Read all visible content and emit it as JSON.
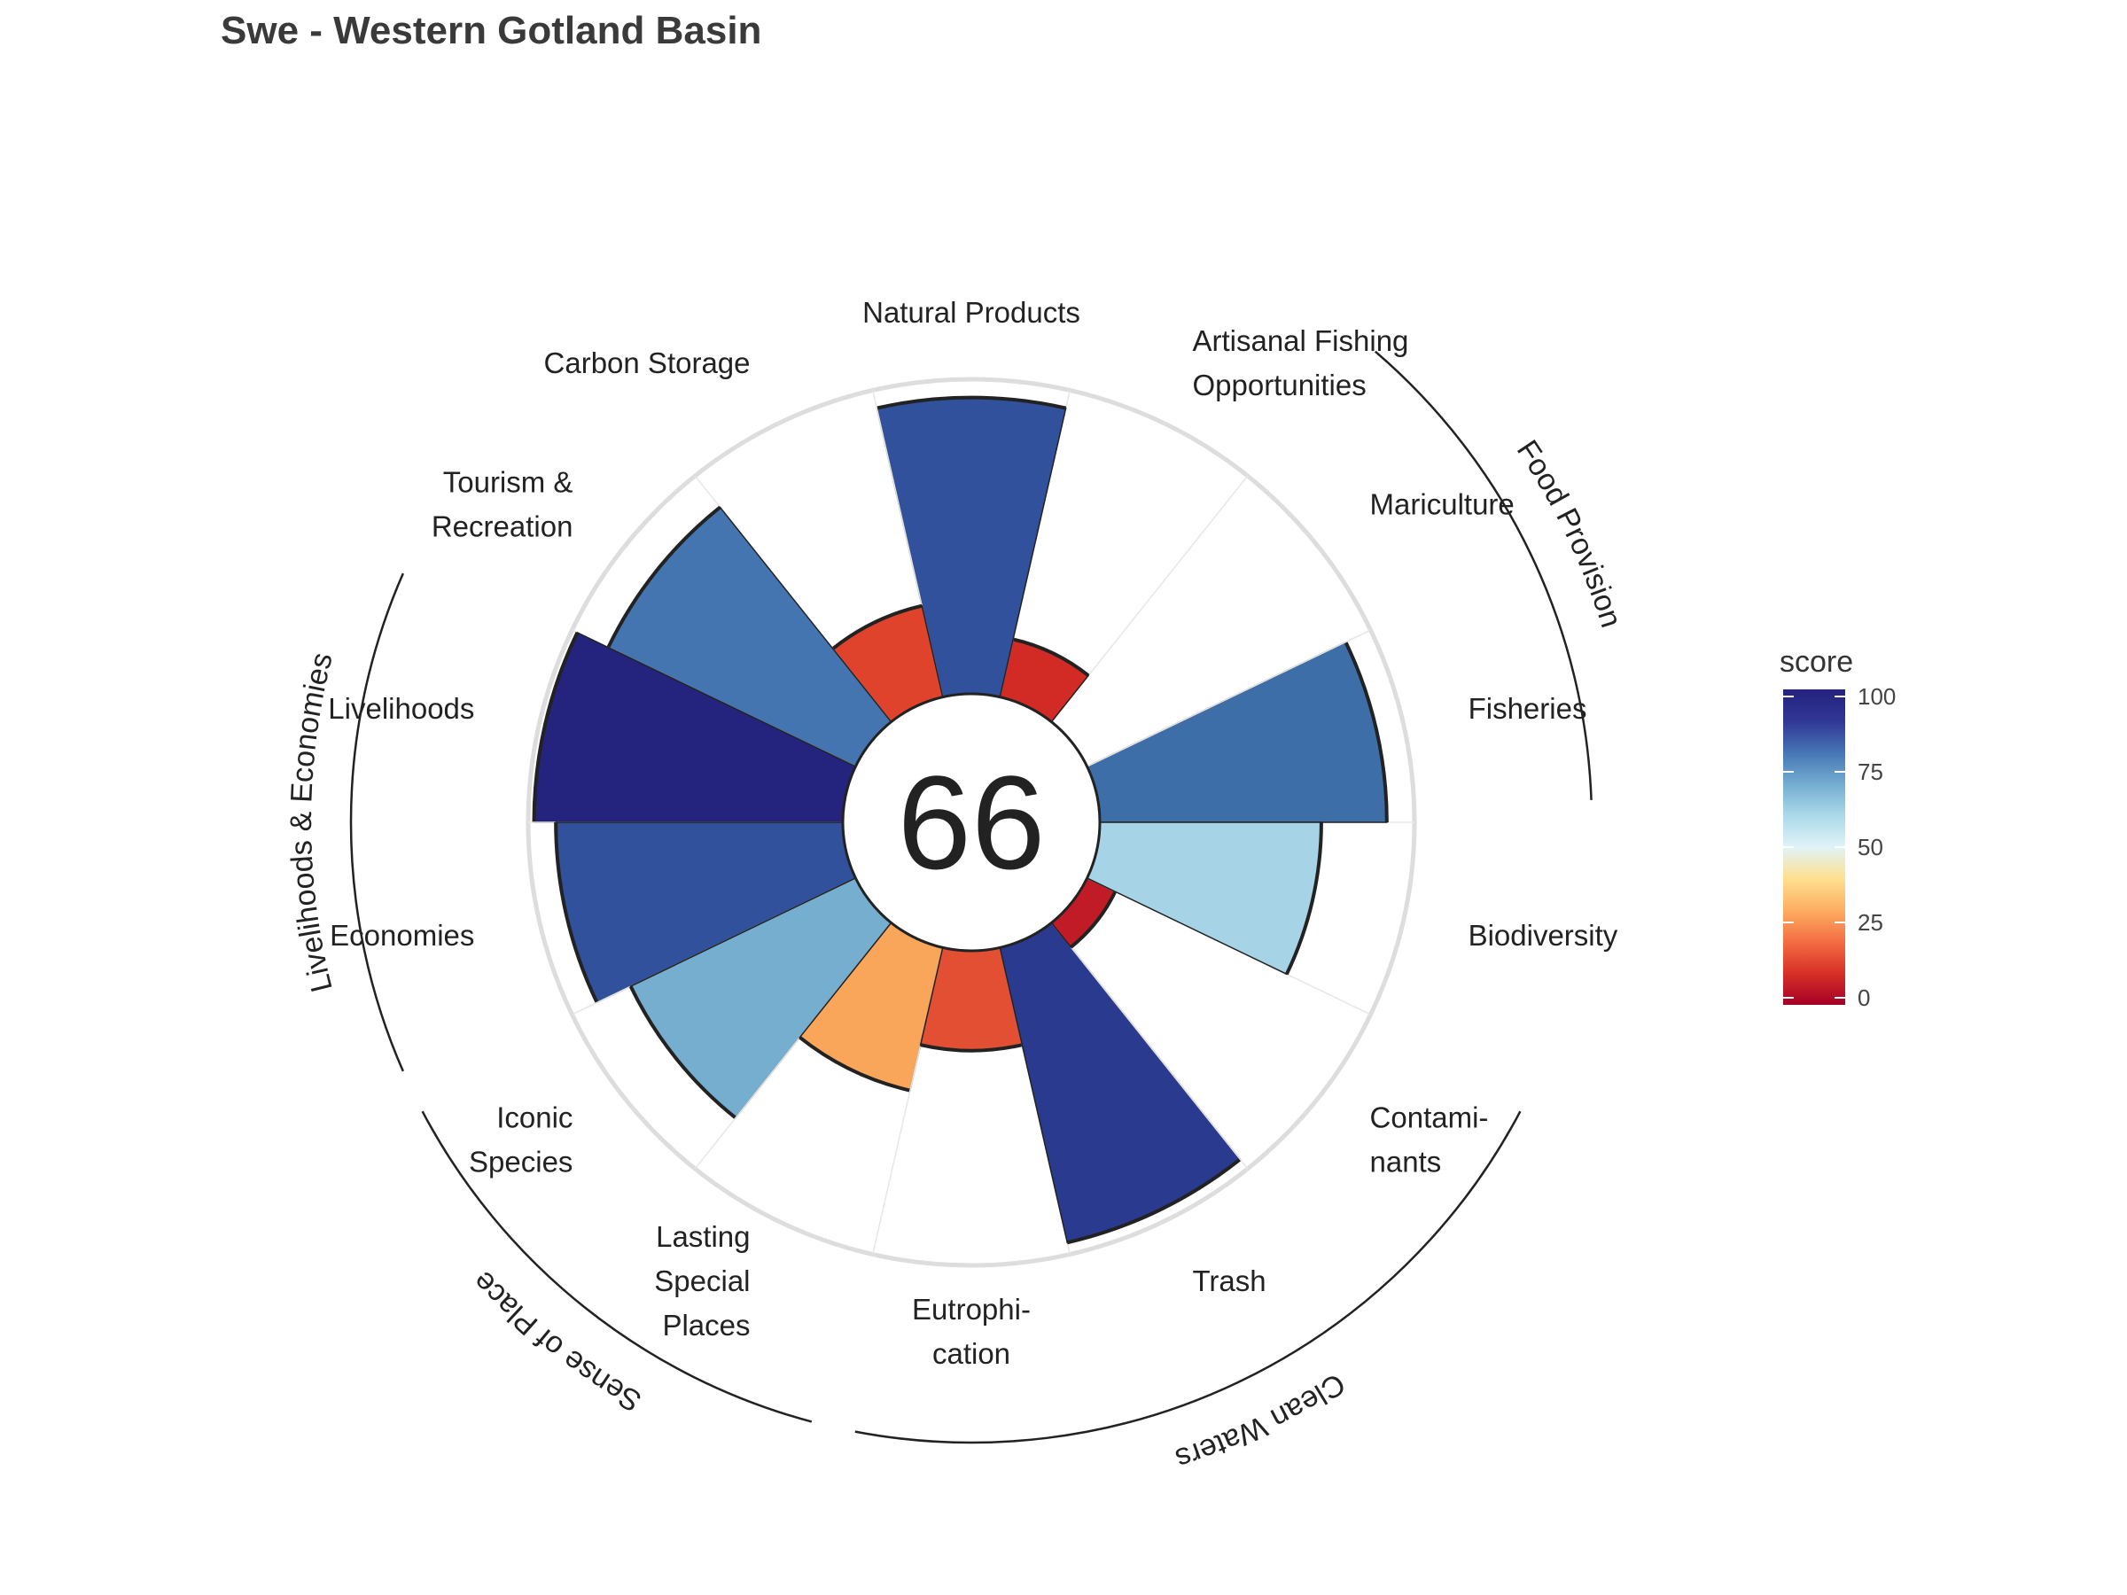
{
  "chart_data": {
    "type": "flower",
    "title": "Swe - Western Gotland Basin",
    "center_score": "66",
    "value_range": [
      0,
      100
    ],
    "petals": [
      {
        "label": [
          "Fisheries"
        ],
        "score": 92,
        "weight": 1.0,
        "color": "#3e6ea8"
      },
      {
        "label": [
          "Mariculture"
        ],
        "score": null,
        "weight": 0.0,
        "color": null
      },
      {
        "label": [
          "Artisanal Fishing",
          "Opportunities"
        ],
        "score": 19,
        "weight": 1.0,
        "color": "#d22b26"
      },
      {
        "label": [
          "Natural Products"
        ],
        "score": 95,
        "weight": 1.0,
        "color": "#32519c"
      },
      {
        "label": [
          "Carbon Storage"
        ],
        "score": 30,
        "weight": 1.0,
        "color": "#e0432b"
      },
      {
        "label": [
          "Tourism &",
          "Recreation"
        ],
        "score": 88,
        "weight": 1.0,
        "color": "#4575b0"
      },
      {
        "label": [
          "Livelihoods"
        ],
        "score": 99,
        "weight": 0.5,
        "color": "#24237e"
      },
      {
        "label": [
          "Economies"
        ],
        "score": 92,
        "weight": 0.5,
        "color": "#32519c"
      },
      {
        "label": [
          "Iconic",
          "Species"
        ],
        "score": 80,
        "weight": 0.5,
        "color": "#76aed0"
      },
      {
        "label": [
          "Lasting",
          "Special",
          "Places"
        ],
        "score": 47,
        "weight": 0.5,
        "color": "#f9a55a"
      },
      {
        "label": [
          "Eutrophi-",
          "cation"
        ],
        "score": 32,
        "weight": 0.25,
        "color": "#e24f33"
      },
      {
        "label": [
          "Trash"
        ],
        "score": 97,
        "weight": 0.25,
        "color": "#2a3a8f"
      },
      {
        "label": [
          "Contami-",
          "nants"
        ],
        "score": 10,
        "weight": 0.25,
        "color": "#c11b27"
      },
      {
        "label": [
          "Biodiversity"
        ],
        "score": 71,
        "weight": 1.0,
        "color": "#a6d3e5"
      }
    ],
    "supra_goals": [
      {
        "label": "Food Provision"
      },
      {
        "label": "Livelihoods & Economies"
      },
      {
        "label": "Sense of Place"
      },
      {
        "label": "Clean Waters"
      }
    ],
    "legend": {
      "title": "score",
      "ticks": [
        "100",
        "75",
        "50",
        "25",
        "0"
      ],
      "gradient": [
        "#a50026",
        "#d73027",
        "#f46d43",
        "#fdae61",
        "#fee090",
        "#e0f3f8",
        "#abd9e9",
        "#74add1",
        "#4575b4",
        "#313695",
        "#24237e"
      ]
    }
  }
}
